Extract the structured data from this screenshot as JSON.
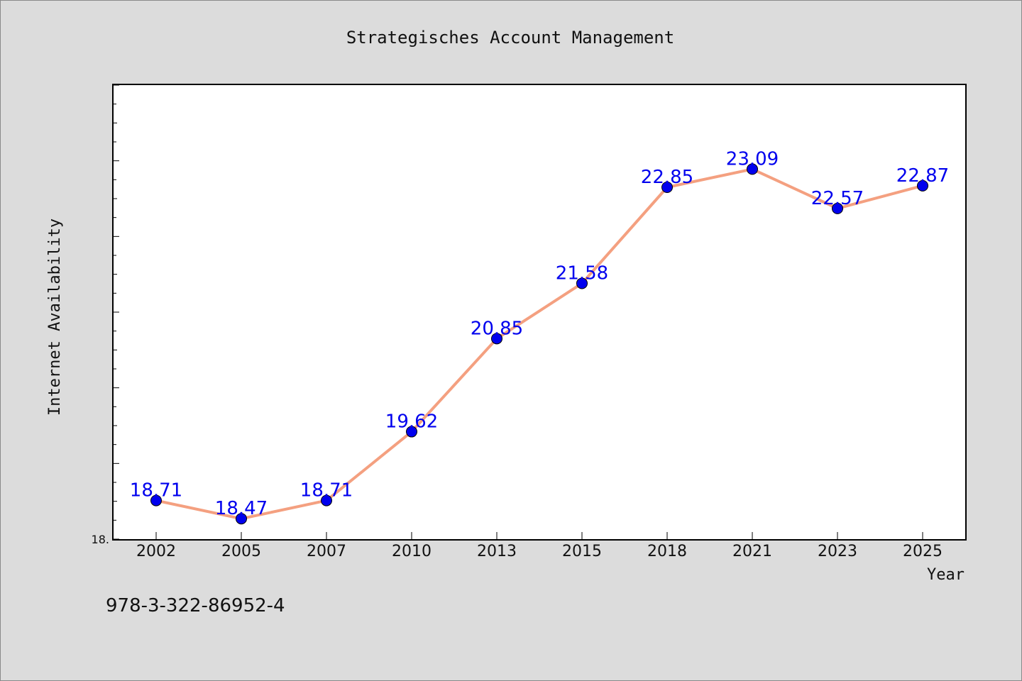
{
  "chart_data": {
    "type": "line",
    "title": "Strategisches Account Management",
    "xlabel": "Year",
    "ylabel": "Internet Availability",
    "categories": [
      "2002",
      "2005",
      "2007",
      "2010",
      "2013",
      "2015",
      "2018",
      "2021",
      "2023",
      "2025"
    ],
    "series": [
      {
        "values": [
          18.71,
          18.47,
          18.71,
          19.62,
          20.85,
          21.58,
          22.85,
          23.09,
          22.57,
          22.87
        ],
        "labels": [
          "18.71",
          "18.47",
          "18.71",
          "19.62",
          "20.85",
          "21.58",
          "22.85",
          "23.09",
          "22.57",
          "22.87"
        ]
      }
    ],
    "ytick_label": "18.",
    "ylim": [
      18.2,
      24.2
    ],
    "grid": false,
    "line_color": "#f4a080",
    "marker_color": "#0000ee",
    "label_color": "#0000ee"
  },
  "footer_text": "978-3-322-86952-4"
}
